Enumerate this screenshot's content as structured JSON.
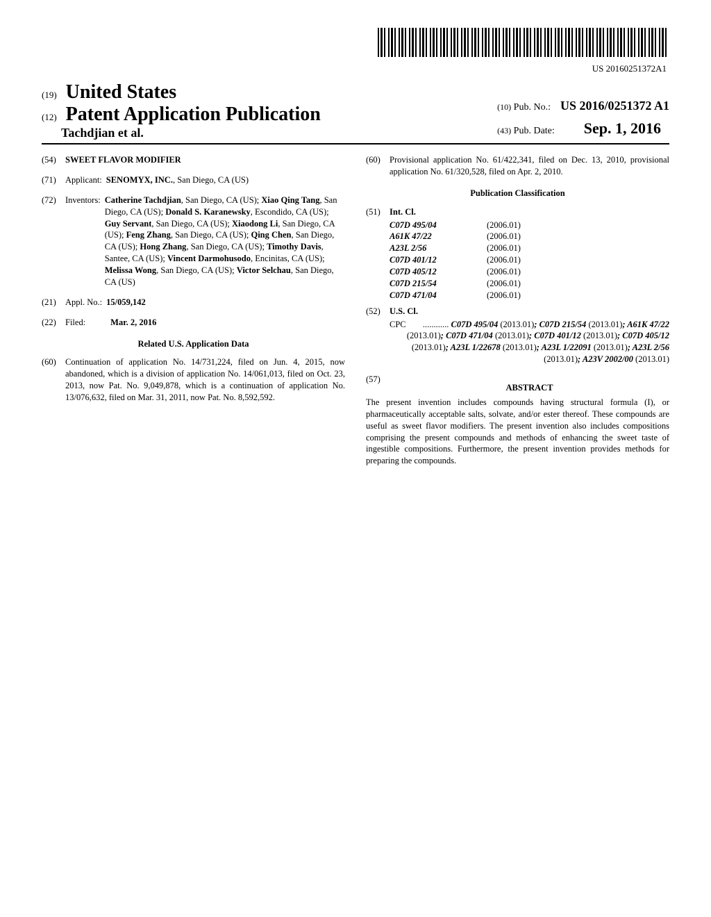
{
  "barcode_number": "US 20160251372A1",
  "header": {
    "us_prefix": "(19)",
    "us_text": "United States",
    "pub_prefix": "(12)",
    "pub_text": "Patent Application Publication",
    "authors": "Tachdjian et al.",
    "pubno_prefix": "(10)",
    "pubno_label": "Pub. No.:",
    "pubno_value": "US 2016/0251372 A1",
    "pubdate_prefix": "(43)",
    "pubdate_label": "Pub. Date:",
    "pubdate_value": "Sep. 1, 2016"
  },
  "left": {
    "title_num": "(54)",
    "title": "SWEET FLAVOR MODIFIER",
    "applicant_num": "(71)",
    "applicant_label": "Applicant:",
    "applicant": "SENOMYX, INC.",
    "applicant_loc": ", San Diego, CA (US)",
    "inventors_num": "(72)",
    "inventors_label": "Inventors:",
    "inventors": "Catherine Tachdjian, San Diego, CA (US); Xiao Qing Tang, San Diego, CA (US); Donald S. Karanewsky, Escondido, CA (US); Guy Servant, San Diego, CA (US); Xiaodong Li, San Diego, CA (US); Feng Zhang, San Diego, CA (US); Qing Chen, San Diego, CA (US); Hong Zhang, San Diego, CA (US); Timothy Davis, Santee, CA (US); Vincent Darmohusodo, Encinitas, CA (US); Melissa Wong, San Diego, CA (US); Victor Selchau, San Diego, CA (US)",
    "applno_num": "(21)",
    "applno_label": "Appl. No.:",
    "applno": "15/059,142",
    "filed_num": "(22)",
    "filed_label": "Filed:",
    "filed": "Mar. 2, 2016",
    "related_heading": "Related U.S. Application Data",
    "related_num": "(60)",
    "related_text": "Continuation of application No. 14/731,224, filed on Jun. 4, 2015, now abandoned, which is a division of application No. 14/061,013, filed on Oct. 23, 2013, now Pat. No. 9,049,878, which is a continuation of application No. 13/076,632, filed on Mar. 31, 2011, now Pat. No. 8,592,592."
  },
  "right": {
    "prov_num": "(60)",
    "prov_text": "Provisional application No. 61/422,341, filed on Dec. 13, 2010, provisional application No. 61/320,528, filed on Apr. 2, 2010.",
    "class_heading": "Publication Classification",
    "intcl_num": "(51)",
    "intcl_label": "Int. Cl.",
    "intcl": [
      {
        "code": "C07D 495/04",
        "year": "(2006.01)"
      },
      {
        "code": "A61K 47/22",
        "year": "(2006.01)"
      },
      {
        "code": "A23L 2/56",
        "year": "(2006.01)"
      },
      {
        "code": "C07D 401/12",
        "year": "(2006.01)"
      },
      {
        "code": "C07D 405/12",
        "year": "(2006.01)"
      },
      {
        "code": "C07D 215/54",
        "year": "(2006.01)"
      },
      {
        "code": "C07D 471/04",
        "year": "(2006.01)"
      }
    ],
    "uscl_num": "(52)",
    "uscl_label": "U.S. Cl.",
    "cpc_label": "CPC",
    "cpc_text": "C07D 495/04 (2013.01); C07D 215/54 (2013.01); A61K 47/22 (2013.01); C07D 471/04 (2013.01); C07D 401/12 (2013.01); C07D 405/12 (2013.01); A23L 1/22678 (2013.01); A23L 1/22091 (2013.01); A23L 2/56 (2013.01); A23V 2002/00 (2013.01)",
    "abstract_num": "(57)",
    "abstract_label": "ABSTRACT",
    "abstract_text": "The present invention includes compounds having structural formula (I), or pharmaceutically acceptable salts, solvate, and/or ester thereof. These compounds are useful as sweet flavor modifiers. The present invention also includes compositions comprising the present compounds and methods of enhancing the sweet taste of ingestible compositions. Furthermore, the present invention provides methods for preparing the compounds."
  }
}
